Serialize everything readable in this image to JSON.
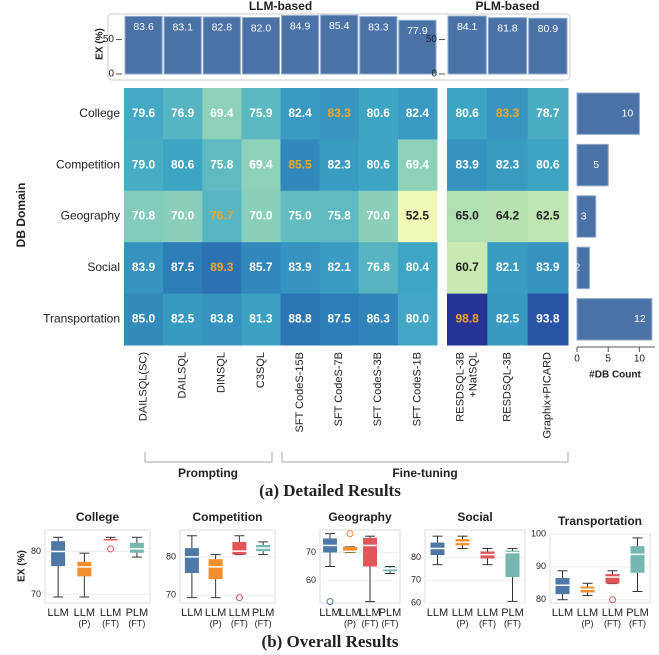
{
  "chart_data": [
    {
      "type": "bar",
      "ylabel": "EX (%)",
      "ylim": [
        0,
        90
      ],
      "yticks": [
        0,
        50
      ],
      "color": "#4a72a6",
      "groups": [
        {
          "title": "LLM-based",
          "values": [
            83.6,
            83.1,
            82.8,
            82.0,
            84.9,
            85.4,
            83.3,
            77.9
          ],
          "value_labels": [
            "83.6",
            "83.1",
            "82.8",
            "82.0",
            "84.9",
            "85.4",
            "83.3",
            "77.9"
          ]
        },
        {
          "title": "PLM-based",
          "values": [
            84.1,
            81.8,
            80.9
          ],
          "value_labels": [
            "84.1",
            "81.8",
            "80.9"
          ]
        }
      ]
    },
    {
      "type": "heatmap",
      "title": "(a) Detailed Results",
      "ylabel": "DB Domain",
      "highlight_color": "#f5a623",
      "rows": [
        "College",
        "Competition",
        "Geography",
        "Social",
        "Transportation"
      ],
      "spans": [
        "Prompting",
        "Fine-tuning"
      ],
      "groups": [
        {
          "columns": [
            [
              "DAILSQL(SC)"
            ],
            [
              "DAILSQL"
            ],
            [
              "DINSQL"
            ],
            [
              "C3SQL"
            ],
            [
              "SFT CodeS-15B"
            ],
            [
              "SFT CodeS-7B"
            ],
            [
              "SFT CodeS-3B"
            ],
            [
              "SFT CodeS-1B"
            ]
          ],
          "values": [
            [
              79.6,
              76.9,
              69.4,
              75.9,
              82.4,
              83.3,
              80.6,
              82.4
            ],
            [
              79.0,
              80.6,
              75.8,
              69.4,
              85.5,
              82.3,
              80.6,
              69.4
            ],
            [
              70.8,
              70.0,
              76.7,
              70.0,
              75.0,
              75.8,
              70.0,
              52.5
            ],
            [
              83.9,
              87.5,
              89.3,
              85.7,
              83.9,
              82.1,
              76.8,
              80.4
            ],
            [
              85.0,
              82.5,
              83.8,
              81.3,
              88.8,
              87.5,
              86.3,
              80.0
            ]
          ],
          "value_labels": [
            [
              "79.6",
              "76.9",
              "69.4",
              "75.9",
              "82.4",
              "83.3",
              "80.6",
              "82.4"
            ],
            [
              "79.0",
              "80.6",
              "75.8",
              "69.4",
              "85.5",
              "82.3",
              "80.6",
              "69.4"
            ],
            [
              "70.8",
              "70.0",
              "76.7",
              "70.0",
              "75.0",
              "75.8",
              "70.0",
              "52.5"
            ],
            [
              "83.9",
              "87.5",
              "89.3",
              "85.7",
              "83.9",
              "82.1",
              "76.8",
              "80.4"
            ],
            [
              "85.0",
              "82.5",
              "83.8",
              "81.3",
              "88.8",
              "87.5",
              "86.3",
              "80.0"
            ]
          ]
        },
        {
          "columns": [
            [
              "RESDSQL-3B",
              "+NatSQL"
            ],
            [
              "RESDSQL-3B"
            ],
            [
              "Graphix+PICARD"
            ]
          ],
          "values": [
            [
              80.6,
              83.3,
              78.7
            ],
            [
              83.9,
              82.3,
              80.6
            ],
            [
              65.0,
              64.2,
              62.5
            ],
            [
              60.7,
              82.1,
              83.9
            ],
            [
              98.8,
              82.5,
              93.8
            ]
          ],
          "value_labels": [
            [
              "80.6",
              "83.3",
              "78.7"
            ],
            [
              "83.9",
              "82.3",
              "80.6"
            ],
            [
              "65.0",
              "64.2",
              "62.5"
            ],
            [
              "60.7",
              "82.1",
              "83.9"
            ],
            [
              "98.8",
              "82.5",
              "93.8"
            ]
          ]
        }
      ]
    },
    {
      "type": "hbar",
      "xlabel": "#DB Count",
      "xlim": [
        0,
        12.5
      ],
      "xticks": [
        0,
        5,
        10
      ],
      "color": "#4a72a6",
      "values": [
        10,
        5,
        3,
        2,
        12
      ]
    },
    {
      "type": "box",
      "title": "(b) Overall Results",
      "ylabel": "EX (%)",
      "categories": [
        [
          "LLM"
        ],
        [
          "LLM",
          "(P)"
        ],
        [
          "LLM",
          "(FT)"
        ],
        [
          "PLM",
          "(FT)"
        ]
      ],
      "colors": [
        "#4e79a7",
        "#f28e2b",
        "#e15759",
        "#76b7b2"
      ],
      "panels": [
        {
          "title": "College",
          "ylim": [
            68,
            85
          ],
          "yticks": [
            70,
            80
          ],
          "boxes": [
            {
              "min": 69.4,
              "q1": 76.6,
              "median": 80.0,
              "q3": 82.4,
              "max": 83.3,
              "outliers": []
            },
            {
              "min": 69.4,
              "q1": 74.2,
              "median": 76.4,
              "q3": 77.6,
              "max": 79.6,
              "outliers": []
            },
            {
              "min": 82.4,
              "q1": 82.4,
              "median": 82.4,
              "q3": 82.9,
              "max": 83.3,
              "outliers": [
                80.6
              ]
            },
            {
              "min": 78.7,
              "q1": 79.7,
              "median": 80.6,
              "q3": 82.0,
              "max": 83.3,
              "outliers": []
            }
          ]
        },
        {
          "title": "Competition",
          "ylim": [
            68,
            87
          ],
          "yticks": [
            70,
            80
          ],
          "boxes": [
            {
              "min": 69.4,
              "q1": 75.8,
              "median": 80.0,
              "q3": 82.3,
              "max": 85.5,
              "outliers": []
            },
            {
              "min": 69.4,
              "q1": 74.2,
              "median": 77.4,
              "q3": 79.4,
              "max": 80.6,
              "outliers": []
            },
            {
              "min": 80.6,
              "q1": 80.6,
              "median": 81.5,
              "q3": 83.9,
              "max": 85.5,
              "outliers": [
                69.4
              ]
            },
            {
              "min": 80.6,
              "q1": 81.5,
              "median": 82.3,
              "q3": 83.1,
              "max": 83.9,
              "outliers": []
            }
          ]
        },
        {
          "title": "Geography",
          "ylim": [
            52,
            78
          ],
          "yticks": [
            60,
            70
          ],
          "boxes": [
            {
              "min": 65.0,
              "q1": 70.0,
              "median": 72.5,
              "q3": 75.0,
              "max": 76.7,
              "outliers": [
                52.5
              ]
            },
            {
              "min": 70.0,
              "q1": 70.0,
              "median": 70.4,
              "q3": 72.0,
              "max": 72.0,
              "outliers": [
                76.7
              ]
            },
            {
              "min": 52.5,
              "q1": 65.0,
              "median": 72.5,
              "q3": 75.2,
              "max": 75.8,
              "outliers": []
            },
            {
              "min": 62.5,
              "q1": 63.3,
              "median": 64.2,
              "q3": 64.6,
              "max": 65.0,
              "outliers": []
            }
          ]
        },
        {
          "title": "Social",
          "ylim": [
            60,
            92
          ],
          "yticks": [
            60,
            70,
            80
          ],
          "boxes": [
            {
              "min": 76.8,
              "q1": 81.0,
              "median": 83.9,
              "q3": 86.5,
              "max": 89.3,
              "outliers": []
            },
            {
              "min": 83.9,
              "q1": 85.3,
              "median": 86.6,
              "q3": 88.0,
              "max": 89.3,
              "outliers": []
            },
            {
              "min": 76.8,
              "q1": 79.5,
              "median": 81.2,
              "q3": 82.6,
              "max": 83.9,
              "outliers": []
            },
            {
              "min": 60.7,
              "q1": 71.4,
              "median": 82.1,
              "q3": 83.0,
              "max": 83.9,
              "outliers": []
            }
          ]
        },
        {
          "title": "Transportation",
          "ylim": [
            79,
            100
          ],
          "yticks": [
            80,
            90,
            100
          ],
          "boxes": [
            {
              "min": 80.0,
              "q1": 81.7,
              "median": 84.4,
              "q3": 86.6,
              "max": 88.8,
              "outliers": []
            },
            {
              "min": 81.3,
              "q1": 82.2,
              "median": 83.2,
              "q3": 84.0,
              "max": 85.0,
              "outliers": []
            },
            {
              "min": 84.9,
              "q1": 84.9,
              "median": 86.9,
              "q3": 87.8,
              "max": 88.8,
              "outliers": [
                80.0
              ]
            },
            {
              "min": 82.5,
              "q1": 88.2,
              "median": 93.8,
              "q3": 96.3,
              "max": 98.8,
              "outliers": []
            }
          ]
        }
      ]
    }
  ]
}
